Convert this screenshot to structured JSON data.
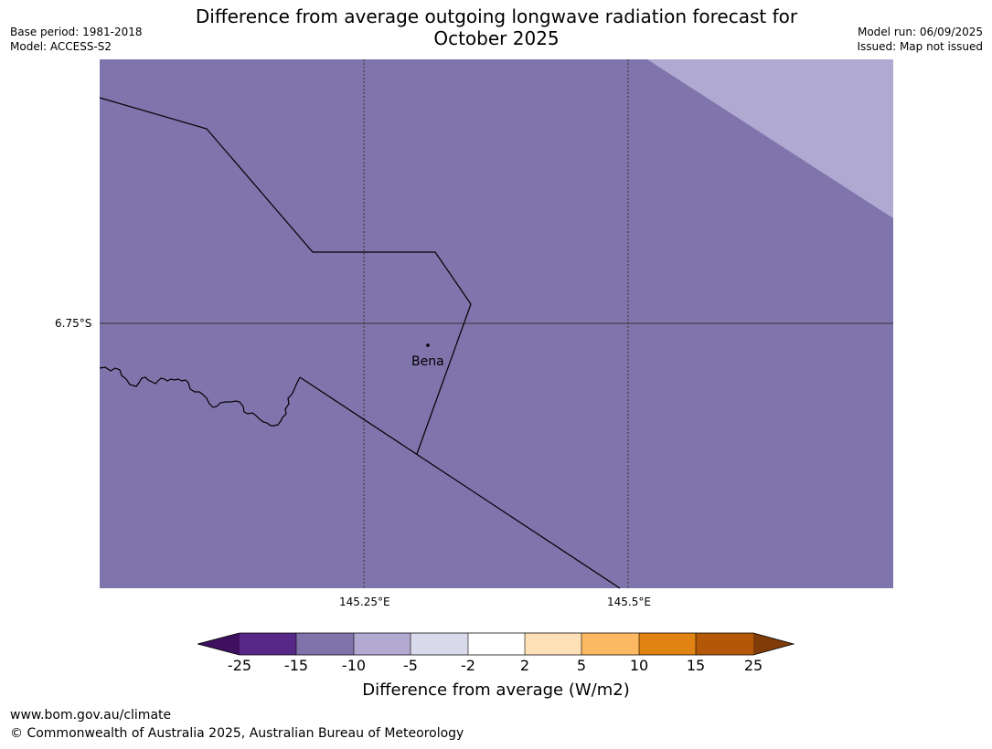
{
  "header": {
    "base_period": "Base period: 1981-2018",
    "model": "Model: ACCESS-S2",
    "title_line1": "Difference from average outgoing longwave radiation forecast for",
    "title_line2": "October 2025",
    "model_run": "Model run: 06/09/2025",
    "issued": "Issued: Map not issued"
  },
  "map": {
    "lat_gridline_label": "6.75°S",
    "lon_gridline_labels": [
      "145.25°E",
      "145.5°E"
    ],
    "place": {
      "name": "Bena"
    },
    "colors": {
      "main_fill": "#8074ac",
      "secondary_fill": "#b0a9d1",
      "boundary": "#000000",
      "grid": "#333333"
    }
  },
  "legend": {
    "ticks": [
      "-25",
      "-15",
      "-10",
      "-5",
      "-2",
      "2",
      "5",
      "10",
      "15",
      "25"
    ],
    "colors": [
      "#3f0f60",
      "#582889",
      "#8073ac",
      "#b2aad1",
      "#d8d9eb",
      "#ffffff",
      "#fee0b6",
      "#fcb862",
      "#e08313",
      "#b35806",
      "#7f3b08"
    ],
    "label": "Difference from average (W/m2)"
  },
  "footer": {
    "url": "www.bom.gov.au/climate",
    "copyright": "© Commonwealth of Australia 2025, Australian Bureau of Meteorology"
  }
}
